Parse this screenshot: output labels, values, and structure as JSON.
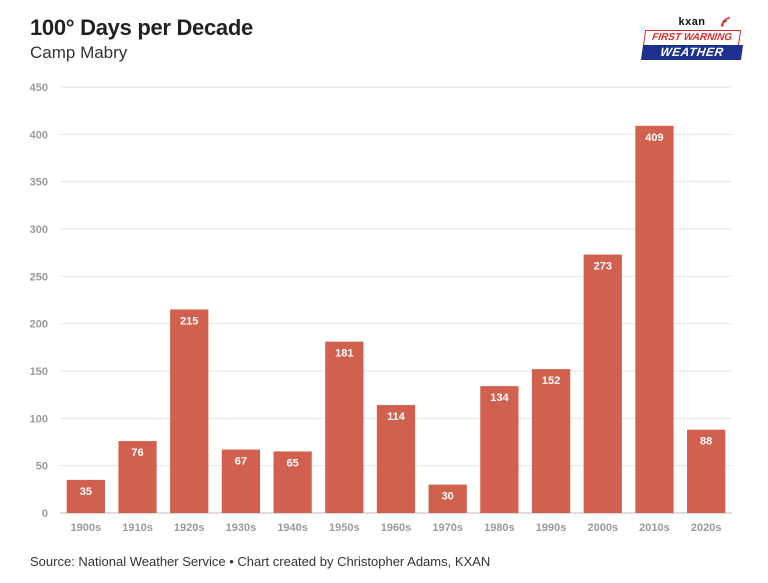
{
  "chart_data": {
    "type": "bar",
    "title": "100° Days per Decade",
    "subtitle": "Camp Mabry",
    "categories": [
      "1900s",
      "1910s",
      "1920s",
      "1930s",
      "1940s",
      "1950s",
      "1960s",
      "1970s",
      "1980s",
      "1990s",
      "2000s",
      "2010s",
      "2020s"
    ],
    "values": [
      35,
      76,
      215,
      67,
      65,
      181,
      114,
      30,
      134,
      152,
      273,
      409,
      88
    ],
    "xlabel": "",
    "ylabel": "",
    "ylim": [
      0,
      450
    ],
    "yticks": [
      0,
      50,
      100,
      150,
      200,
      250,
      300,
      350,
      400,
      450
    ],
    "grid": true,
    "bar_color": "#d2604f",
    "data_labels": true
  },
  "logo": {
    "brand": "kxan",
    "line1": "FIRST WARNING",
    "line2": "WEATHER",
    "colors": {
      "red": "#d62b2b",
      "blue": "#1d2f8f"
    }
  },
  "source": "Source: National Weather Service • Chart created by Christopher Adams, KXAN"
}
